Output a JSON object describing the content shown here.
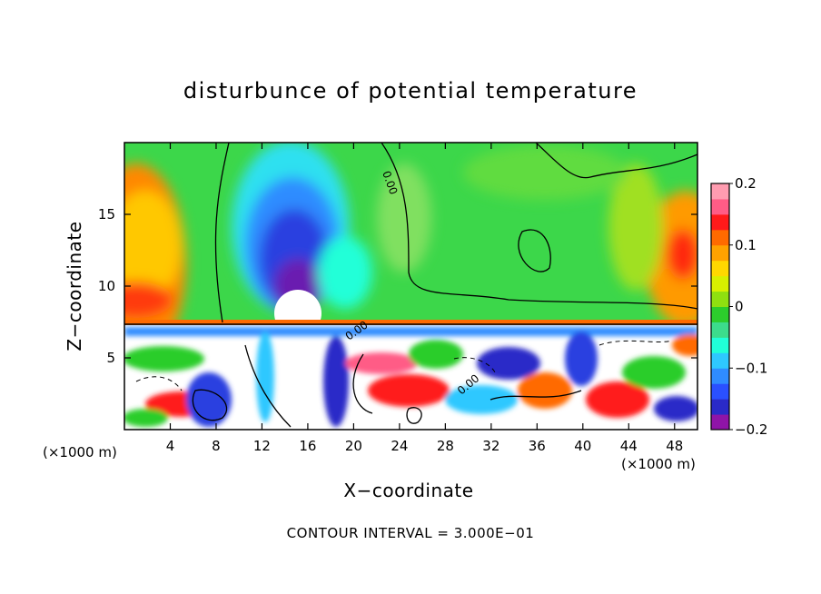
{
  "chart_data": {
    "type": "heatmap",
    "title": "disturbunce of potential temperature",
    "xlabel": "X−coordinate",
    "ylabel": "Z−coordinate",
    "x_unit": "(×1000 m)",
    "z_unit": "(×1000 m)",
    "note": "CONTOUR INTERVAL = 3.000E−01",
    "xlim": [
      0,
      50
    ],
    "ylim": [
      0,
      20
    ],
    "x_ticks": [
      4,
      8,
      12,
      16,
      20,
      24,
      28,
      32,
      36,
      40,
      44,
      48
    ],
    "x_tick_labels": [
      "4",
      "8",
      "12",
      "16",
      "20",
      "24",
      "28",
      "32",
      "36",
      "40",
      "44",
      "48"
    ],
    "y_ticks": [
      5,
      10,
      15
    ],
    "y_tick_labels": [
      "5",
      "10",
      "15"
    ],
    "colorbar": {
      "range": [
        -0.2,
        0.2
      ],
      "ticks": [
        0.2,
        0.1,
        0,
        -0.1,
        -0.2
      ],
      "tick_labels": [
        "0.2",
        "0.1",
        "0",
        "−0.1",
        "−0.2"
      ],
      "colors": [
        "#8f14a8",
        "#2a2ac8",
        "#2a50ff",
        "#2f8cff",
        "#2ec8ff",
        "#20ffd8",
        "#3cdc8c",
        "#2ccd2c",
        "#8fe010",
        "#d8f000",
        "#ffd800",
        "#ffa200",
        "#ff6a00",
        "#ff1a1a",
        "#ff5c86",
        "#ff9cb0"
      ]
    },
    "contour_labels": [
      "0.00",
      "0.00",
      "0.00"
    ]
  }
}
